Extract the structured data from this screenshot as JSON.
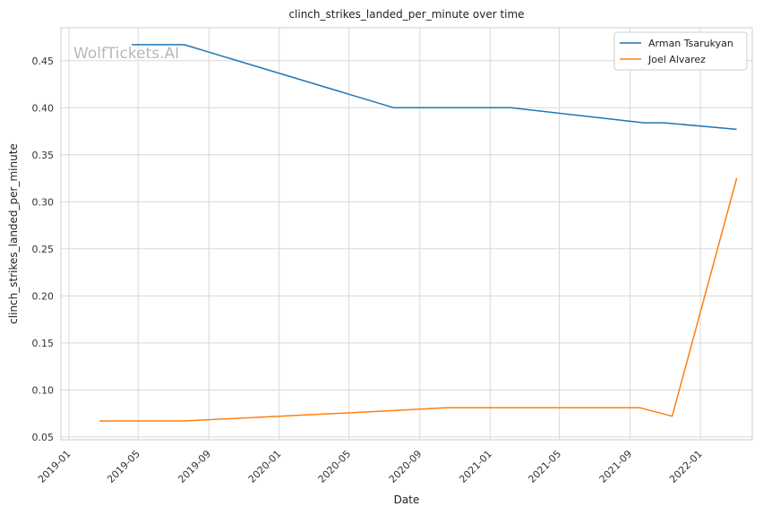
{
  "chart_data": {
    "type": "line",
    "title": "clinch_strikes_landed_per_minute over time",
    "xlabel": "Date",
    "ylabel": "clinch_strikes_landed_per_minute",
    "watermark": "WolfTickets.AI",
    "xlim": [
      "2018-12-18",
      "2022-04-01"
    ],
    "ylim": [
      0.047,
      0.485
    ],
    "x_ticks": [
      "2019-01",
      "2019-05",
      "2019-09",
      "2020-01",
      "2020-05",
      "2020-09",
      "2021-01",
      "2021-05",
      "2021-09",
      "2022-01"
    ],
    "y_ticks": [
      "0.05",
      "0.10",
      "0.15",
      "0.20",
      "0.25",
      "0.30",
      "0.35",
      "0.40",
      "0.45"
    ],
    "grid": true,
    "legend_position": "top-right",
    "colors": {
      "Arman Tsarukyan": "#1f77b4",
      "Joel Alvarez": "#ff7f0e"
    },
    "series": [
      {
        "name": "Arman Tsarukyan",
        "color": "#1f77b4",
        "points": [
          {
            "x": "2019-04-20",
            "y": 0.467
          },
          {
            "x": "2019-07-20",
            "y": 0.467
          },
          {
            "x": "2020-07-18",
            "y": 0.4
          },
          {
            "x": "2021-02-06",
            "y": 0.4
          },
          {
            "x": "2021-09-25",
            "y": 0.384
          },
          {
            "x": "2021-10-30",
            "y": 0.384
          },
          {
            "x": "2022-03-05",
            "y": 0.377
          }
        ]
      },
      {
        "name": "Joel Alvarez",
        "color": "#ff7f0e",
        "points": [
          {
            "x": "2019-02-23",
            "y": 0.067
          },
          {
            "x": "2019-07-20",
            "y": 0.067
          },
          {
            "x": "2020-07-18",
            "y": 0.078
          },
          {
            "x": "2020-10-17",
            "y": 0.081
          },
          {
            "x": "2021-09-18",
            "y": 0.081
          },
          {
            "x": "2021-11-13",
            "y": 0.072
          },
          {
            "x": "2022-03-05",
            "y": 0.325
          }
        ]
      }
    ]
  }
}
